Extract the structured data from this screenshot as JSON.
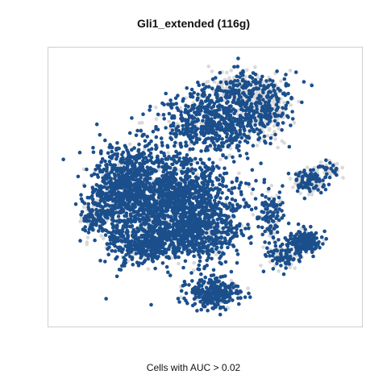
{
  "title": "Gli1_extended (116g)",
  "caption": "Cells with AUC > 0.02",
  "chart_data": {
    "type": "scatter",
    "title": "Gli1_extended (116g)",
    "subtitle": "",
    "xlabel": "",
    "ylabel": "",
    "caption": "Cells with AUC > 0.02",
    "axes_visible": false,
    "grid": false,
    "legend": "none",
    "colors": {
      "above_threshold": "#1b4f8c",
      "below_threshold": "#d9d9d9",
      "panel_border": "#cfcfcf"
    },
    "threshold": 0.02,
    "series": [
      {
        "highlight": true,
        "color": "#1b4f8c"
      },
      {
        "highlight": false,
        "color": "#d9d9d9"
      }
    ]
  }
}
